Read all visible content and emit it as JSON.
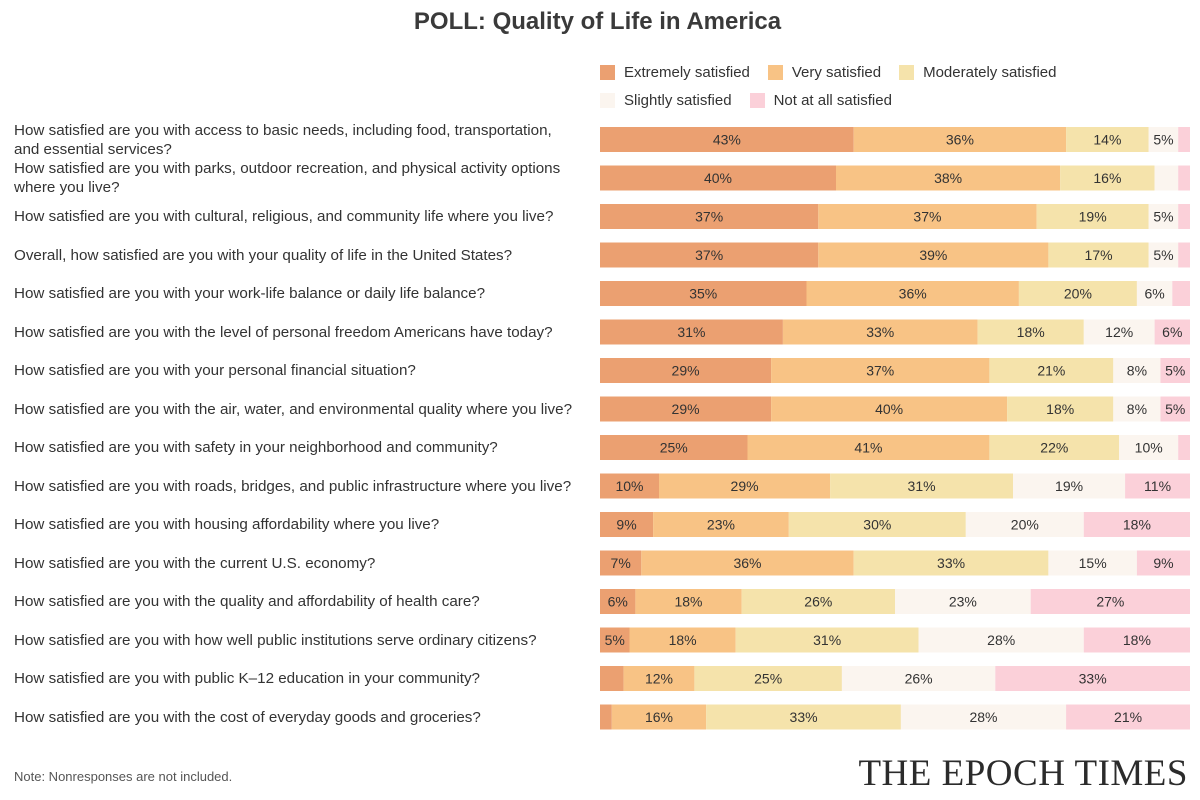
{
  "chart_data": {
    "type": "bar",
    "orientation": "horizontal",
    "stacked": true,
    "title": "POLL: Quality of Life in America",
    "legend_position": "top-right",
    "categories": [
      "How satisfied are you with access to basic needs, including food, transportation, and essential services?",
      "How satisfied are you with parks, outdoor recreation, and physical activity options where you live?",
      "How satisfied are you with cultural, religious, and community life where you live?",
      "Overall, how satisfied are you with your quality of life in the United States?",
      "How satisfied are you with your work-life balance or daily life balance?",
      "How satisfied are you with the level of personal freedom Americans have today?",
      "How satisfied are you with your personal financial situation?",
      "How satisfied are you with the air, water, and environmental quality where you live?",
      "How satisfied are you with safety in your neighborhood and community?",
      "How satisfied are you with roads, bridges, and public infrastructure where you live?",
      "How satisfied are you with housing affordability where you live?",
      "How satisfied are you with the current U.S. economy?",
      "How satisfied are you with the quality and affordability of health care?",
      "How satisfied are you with how well public institutions serve ordinary citizens?",
      "How satisfied are you with public K–12 education in your community?",
      "How satisfied are you with the cost of everyday goods and groceries?"
    ],
    "series": [
      {
        "name": "Extremely satisfied",
        "color": "#eba071",
        "values": [
          43,
          40,
          37,
          37,
          35,
          31,
          29,
          29,
          25,
          10,
          9,
          7,
          6,
          5,
          4,
          2
        ],
        "labels": [
          "43%",
          "40%",
          "37%",
          "37%",
          "35%",
          "31%",
          "29%",
          "29%",
          "25%",
          "10%",
          "9%",
          "7%",
          "6%",
          "5%",
          "",
          ""
        ]
      },
      {
        "name": "Very satisfied",
        "color": "#f8c385",
        "values": [
          36,
          38,
          37,
          39,
          36,
          33,
          37,
          40,
          41,
          29,
          23,
          36,
          18,
          18,
          12,
          16
        ],
        "labels": [
          "36%",
          "38%",
          "37%",
          "39%",
          "36%",
          "33%",
          "37%",
          "40%",
          "41%",
          "29%",
          "23%",
          "36%",
          "18%",
          "18%",
          "12%",
          "16%"
        ]
      },
      {
        "name": "Moderately satisfied",
        "color": "#f5e3ab",
        "values": [
          14,
          16,
          19,
          17,
          20,
          18,
          21,
          18,
          22,
          31,
          30,
          33,
          26,
          31,
          25,
          33
        ],
        "labels": [
          "14%",
          "16%",
          "19%",
          "17%",
          "20%",
          "18%",
          "21%",
          "18%",
          "22%",
          "31%",
          "30%",
          "33%",
          "26%",
          "31%",
          "25%",
          "33%"
        ]
      },
      {
        "name": "Slightly satisfied",
        "color": "#fbf5ef",
        "values": [
          5,
          4,
          5,
          5,
          6,
          12,
          8,
          8,
          10,
          19,
          20,
          15,
          23,
          28,
          26,
          28
        ],
        "labels": [
          "5%",
          "",
          "5%",
          "5%",
          "6%",
          "12%",
          "8%",
          "8%",
          "10%",
          "19%",
          "20%",
          "15%",
          "23%",
          "28%",
          "26%",
          "28%"
        ]
      },
      {
        "name": "Not at all satisfied",
        "color": "#fbd0d9",
        "values": [
          2,
          2,
          2,
          2,
          3,
          6,
          5,
          5,
          2,
          11,
          18,
          9,
          27,
          18,
          33,
          21
        ],
        "labels": [
          "",
          "",
          "",
          "",
          "",
          "6%",
          "5%",
          "5%",
          "",
          "11%",
          "18%",
          "9%",
          "27%",
          "18%",
          "33%",
          "21%"
        ]
      }
    ],
    "xlim": [
      0,
      100
    ],
    "grid": false
  },
  "note": "Note: Nonresponses are not included.",
  "brand": "THE EPOCH TIMES"
}
